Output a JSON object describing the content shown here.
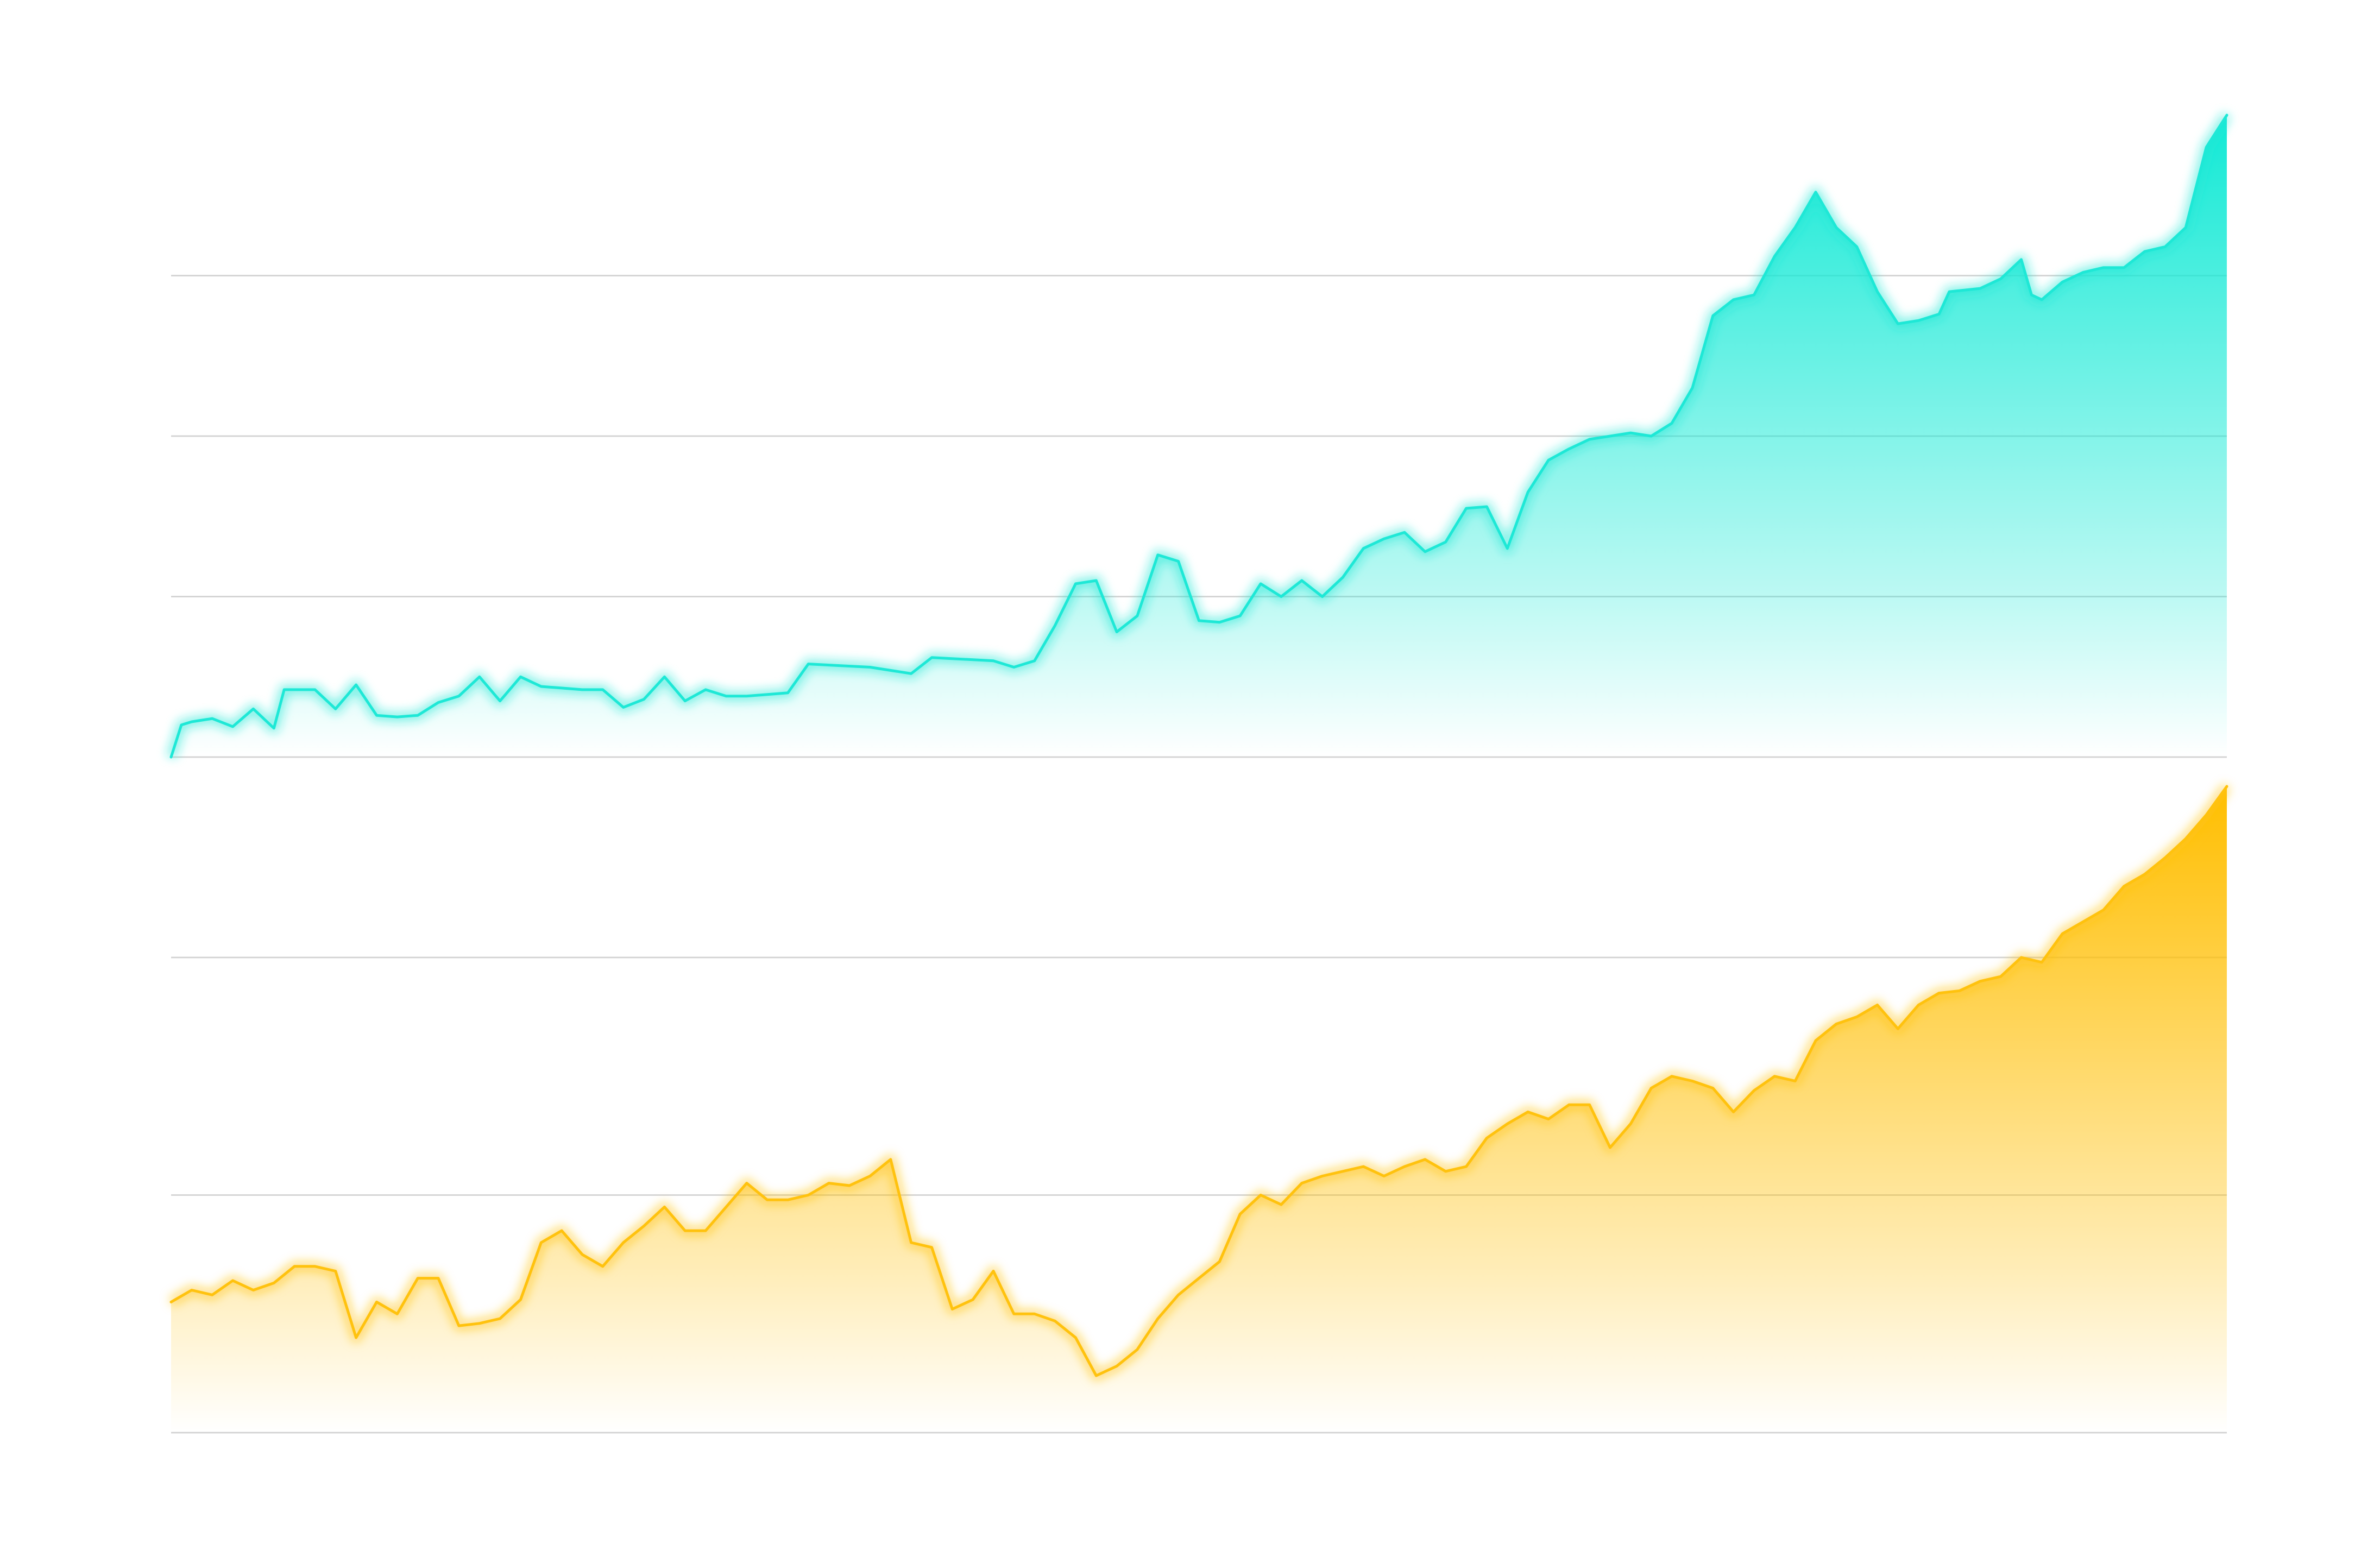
{
  "chart_data": [
    {
      "type": "area",
      "title": "",
      "xlabel": "",
      "ylabel": "",
      "grid": true,
      "legend": "none",
      "xlim": [
        0,
        100
      ],
      "ylim": [
        0,
        4
      ],
      "gridlines": [
        0,
        1,
        2,
        3
      ],
      "color": "#1ee8d6",
      "series": [
        {
          "values": [
            [
              0,
              0.0
            ],
            [
              0.5,
              0.2
            ],
            [
              1,
              0.22
            ],
            [
              2,
              0.24
            ],
            [
              3,
              0.19
            ],
            [
              4,
              0.3
            ],
            [
              5,
              0.18
            ],
            [
              5.5,
              0.42
            ],
            [
              7,
              0.42
            ],
            [
              8,
              0.3
            ],
            [
              9,
              0.45
            ],
            [
              10,
              0.26
            ],
            [
              11,
              0.25
            ],
            [
              12,
              0.26
            ],
            [
              13,
              0.34
            ],
            [
              14,
              0.38
            ],
            [
              15,
              0.5
            ],
            [
              16,
              0.35
            ],
            [
              17,
              0.5
            ],
            [
              18,
              0.44
            ],
            [
              19,
              0.43
            ],
            [
              20,
              0.42
            ],
            [
              21,
              0.42
            ],
            [
              22,
              0.31
            ],
            [
              23,
              0.36
            ],
            [
              24,
              0.5
            ],
            [
              25,
              0.35
            ],
            [
              26,
              0.42
            ],
            [
              27,
              0.38
            ],
            [
              28,
              0.38
            ],
            [
              30,
              0.4
            ],
            [
              31,
              0.58
            ],
            [
              34,
              0.56
            ],
            [
              36,
              0.52
            ],
            [
              37,
              0.62
            ],
            [
              40,
              0.6
            ],
            [
              41,
              0.56
            ],
            [
              42,
              0.6
            ],
            [
              43,
              0.82
            ],
            [
              44,
              1.08
            ],
            [
              45,
              1.1
            ],
            [
              46,
              0.78
            ],
            [
              47,
              0.88
            ],
            [
              48,
              1.26
            ],
            [
              49,
              1.22
            ],
            [
              50,
              0.85
            ],
            [
              51,
              0.84
            ],
            [
              52,
              0.88
            ],
            [
              53,
              1.08
            ],
            [
              54,
              1.0
            ],
            [
              55,
              1.1
            ],
            [
              56,
              1.0
            ],
            [
              57,
              1.12
            ],
            [
              58,
              1.3
            ],
            [
              59,
              1.36
            ],
            [
              60,
              1.4
            ],
            [
              61,
              1.28
            ],
            [
              62,
              1.34
            ],
            [
              63,
              1.55
            ],
            [
              64,
              1.56
            ],
            [
              65,
              1.3
            ],
            [
              66,
              1.65
            ],
            [
              67,
              1.85
            ],
            [
              68,
              1.92
            ],
            [
              69,
              1.98
            ],
            [
              70,
              2.0
            ],
            [
              71,
              2.02
            ],
            [
              72,
              2.0
            ],
            [
              73,
              2.08
            ],
            [
              74,
              2.3
            ],
            [
              75,
              2.75
            ],
            [
              76,
              2.85
            ],
            [
              77,
              2.88
            ],
            [
              78,
              3.12
            ],
            [
              79,
              3.3
            ],
            [
              80,
              3.52
            ],
            [
              81,
              3.3
            ],
            [
              82,
              3.18
            ],
            [
              83,
              2.9
            ],
            [
              84,
              2.7
            ],
            [
              85,
              2.72
            ],
            [
              86,
              2.76
            ],
            [
              86.5,
              2.9
            ],
            [
              88,
              2.92
            ],
            [
              89,
              2.98
            ],
            [
              90,
              3.1
            ],
            [
              90.5,
              2.88
            ],
            [
              91,
              2.85
            ],
            [
              92,
              2.96
            ],
            [
              93,
              3.02
            ],
            [
              94,
              3.05
            ],
            [
              95,
              3.05
            ],
            [
              96,
              3.15
            ],
            [
              97,
              3.18
            ],
            [
              98,
              3.3
            ],
            [
              99,
              3.8
            ],
            [
              100,
              4.0
            ]
          ]
        }
      ]
    },
    {
      "type": "area",
      "title": "",
      "xlabel": "",
      "ylabel": "",
      "grid": true,
      "legend": "none",
      "xlim": [
        0,
        100
      ],
      "ylim": [
        0,
        2.4
      ],
      "gridlines": [
        0,
        1,
        2
      ],
      "color": "#ffc20e",
      "series": [
        {
          "values": [
            [
              0,
              0.55
            ],
            [
              1,
              0.6
            ],
            [
              2,
              0.58
            ],
            [
              3,
              0.64
            ],
            [
              4,
              0.6
            ],
            [
              5,
              0.63
            ],
            [
              6,
              0.7
            ],
            [
              7,
              0.7
            ],
            [
              8,
              0.68
            ],
            [
              9,
              0.4
            ],
            [
              10,
              0.55
            ],
            [
              11,
              0.5
            ],
            [
              12,
              0.65
            ],
            [
              13,
              0.65
            ],
            [
              14,
              0.45
            ],
            [
              15,
              0.46
            ],
            [
              16,
              0.48
            ],
            [
              17,
              0.56
            ],
            [
              18,
              0.8
            ],
            [
              19,
              0.85
            ],
            [
              20,
              0.75
            ],
            [
              21,
              0.7
            ],
            [
              22,
              0.8
            ],
            [
              23,
              0.87
            ],
            [
              24,
              0.95
            ],
            [
              25,
              0.85
            ],
            [
              26,
              0.85
            ],
            [
              27,
              0.95
            ],
            [
              28,
              1.05
            ],
            [
              29,
              0.98
            ],
            [
              30,
              0.98
            ],
            [
              31,
              1.0
            ],
            [
              32,
              1.05
            ],
            [
              33,
              1.04
            ],
            [
              34,
              1.08
            ],
            [
              35,
              1.15
            ],
            [
              36,
              0.8
            ],
            [
              37,
              0.78
            ],
            [
              38,
              0.52
            ],
            [
              39,
              0.56
            ],
            [
              40,
              0.68
            ],
            [
              41,
              0.5
            ],
            [
              42,
              0.5
            ],
            [
              43,
              0.47
            ],
            [
              44,
              0.4
            ],
            [
              45,
              0.24
            ],
            [
              46,
              0.28
            ],
            [
              47,
              0.35
            ],
            [
              48,
              0.48
            ],
            [
              49,
              0.58
            ],
            [
              50,
              0.65
            ],
            [
              51,
              0.72
            ],
            [
              52,
              0.92
            ],
            [
              53,
              1.0
            ],
            [
              54,
              0.96
            ],
            [
              55,
              1.05
            ],
            [
              56,
              1.08
            ],
            [
              57,
              1.1
            ],
            [
              58,
              1.12
            ],
            [
              59,
              1.08
            ],
            [
              60,
              1.12
            ],
            [
              61,
              1.15
            ],
            [
              62,
              1.1
            ],
            [
              63,
              1.12
            ],
            [
              64,
              1.24
            ],
            [
              65,
              1.3
            ],
            [
              66,
              1.35
            ],
            [
              67,
              1.32
            ],
            [
              68,
              1.38
            ],
            [
              69,
              1.38
            ],
            [
              70,
              1.2
            ],
            [
              71,
              1.3
            ],
            [
              72,
              1.45
            ],
            [
              73,
              1.5
            ],
            [
              74,
              1.48
            ],
            [
              75,
              1.45
            ],
            [
              76,
              1.35
            ],
            [
              77,
              1.44
            ],
            [
              78,
              1.5
            ],
            [
              79,
              1.48
            ],
            [
              80,
              1.65
            ],
            [
              81,
              1.72
            ],
            [
              82,
              1.75
            ],
            [
              83,
              1.8
            ],
            [
              84,
              1.7
            ],
            [
              85,
              1.8
            ],
            [
              86,
              1.85
            ],
            [
              87,
              1.86
            ],
            [
              88,
              1.9
            ],
            [
              89,
              1.92
            ],
            [
              90,
              2.0
            ],
            [
              91,
              1.98
            ],
            [
              92,
              2.1
            ],
            [
              93,
              2.15
            ],
            [
              94,
              2.2
            ],
            [
              95,
              2.3
            ],
            [
              96,
              2.35
            ],
            [
              97,
              2.42
            ],
            [
              98,
              2.5
            ],
            [
              99,
              2.6
            ],
            [
              100,
              2.72
            ]
          ]
        }
      ]
    }
  ]
}
